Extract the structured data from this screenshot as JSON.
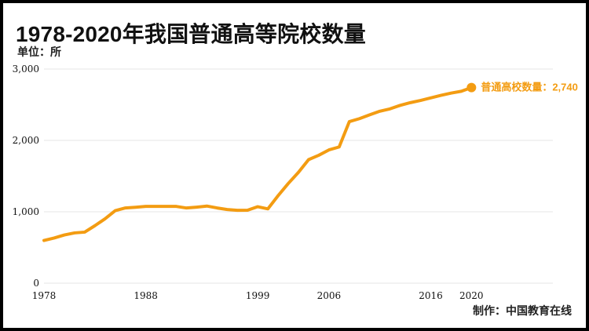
{
  "page": {
    "title": "1978-2020年我国普通高等院校数量",
    "unit_label": "单位：所",
    "credit": "制作：中国教育在线"
  },
  "colors": {
    "series_line": "#F39C12",
    "callout_text": "#F39C12",
    "axis_text": "#111111",
    "gridline": "#E6E6E6",
    "frame": "#000000"
  },
  "chart_data": {
    "type": "line",
    "title": "1978-2020年我国普通高等院校数量",
    "xlabel": "",
    "ylabel": "单位：所",
    "xlim": [
      1978,
      2028
    ],
    "ylim": [
      0,
      3000
    ],
    "grid": true,
    "x_ticks": [
      1978,
      1988,
      1999,
      2006,
      2016,
      2020
    ],
    "x_tick_labels": [
      "1978",
      "1988",
      "1999",
      "2006",
      "2016",
      "2020"
    ],
    "y_ticks": [
      0,
      1000,
      2000,
      3000
    ],
    "y_tick_labels": [
      "0",
      "1,000",
      "2,000",
      "3,000"
    ],
    "series": [
      {
        "name": "普通高校数量",
        "x": [
          1978,
          1979,
          1980,
          1981,
          1982,
          1983,
          1984,
          1985,
          1986,
          1987,
          1988,
          1989,
          1990,
          1991,
          1992,
          1993,
          1994,
          1995,
          1996,
          1997,
          1998,
          1999,
          2000,
          2001,
          2002,
          2003,
          2004,
          2005,
          2006,
          2007,
          2008,
          2009,
          2010,
          2011,
          2012,
          2013,
          2014,
          2015,
          2016,
          2017,
          2018,
          2019,
          2020
        ],
        "values": [
          598,
          633,
          675,
          704,
          715,
          805,
          902,
          1016,
          1054,
          1063,
          1075,
          1075,
          1075,
          1075,
          1053,
          1065,
          1080,
          1054,
          1032,
          1020,
          1022,
          1071,
          1041,
          1225,
          1396,
          1552,
          1731,
          1792,
          1867,
          1908,
          2263,
          2305,
          2358,
          2409,
          2442,
          2491,
          2529,
          2560,
          2596,
          2631,
          2663,
          2688,
          2740
        ]
      }
    ],
    "annotations": [
      {
        "text": "普通高校数量：2,740",
        "x": 2020,
        "y": 2740
      }
    ]
  }
}
